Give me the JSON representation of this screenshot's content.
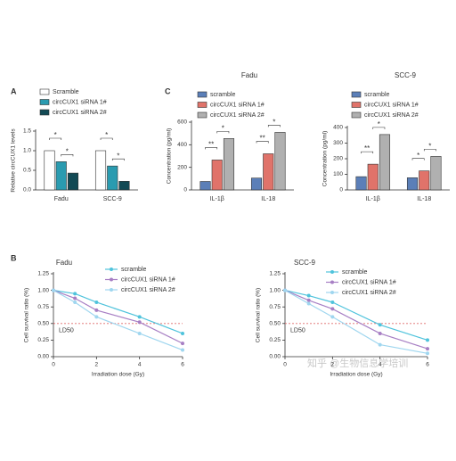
{
  "chart_data": [
    {
      "type": "bar",
      "panel": "A",
      "ylabel": "Relative circCUX1 levels",
      "categories": [
        "Fadu",
        "SCC-9"
      ],
      "series": [
        {
          "name": "Scramble",
          "color": "#ffffff",
          "values": [
            1.0,
            1.0
          ]
        },
        {
          "name": "circCUX1 siRNA 1#",
          "color": "#2a9bb0",
          "values": [
            0.72,
            0.61
          ]
        },
        {
          "name": "circCUX1 siRNA 2#",
          "color": "#124a55",
          "values": [
            0.43,
            0.22
          ]
        }
      ],
      "significance": [
        [
          "*",
          "*"
        ],
        [
          "*",
          "*"
        ]
      ],
      "ylim": [
        0,
        1.5
      ],
      "yticks": [
        {
          "value": 0,
          "label": "0.0"
        },
        {
          "value": 0.5,
          "label": "0.5"
        },
        {
          "value": 1,
          "label": "1.0"
        },
        {
          "value": 1.5,
          "label": "1.5"
        }
      ],
      "legend": "top"
    },
    {
      "type": "bar",
      "panel": "C",
      "title": "Fadu",
      "ylabel": "Concentration (pg/ml)",
      "categories": [
        "IL-1β",
        "IL-18"
      ],
      "series": [
        {
          "name": "scramble",
          "color": "#5b7fb8",
          "values": [
            75,
            105
          ]
        },
        {
          "name": "circCUX1 siRNA 1#",
          "color": "#e0736a",
          "values": [
            265,
            320
          ]
        },
        {
          "name": "circCUX1 siRNA 2#",
          "color": "#b0b0b0",
          "values": [
            455,
            510
          ]
        }
      ],
      "significance": [
        [
          "**",
          "*"
        ],
        [
          "**",
          "*"
        ]
      ],
      "ylim": [
        0,
        600
      ],
      "yticks": [
        0,
        200,
        400,
        600
      ],
      "legend": "top"
    },
    {
      "type": "bar",
      "title": "SCC-9",
      "ylabel": "Concentration (pg/ml)",
      "categories": [
        "IL-1β",
        "IL-18"
      ],
      "series": [
        {
          "name": "scramble",
          "color": "#5b7fb8",
          "values": [
            85,
            78
          ]
        },
        {
          "name": "circCUX1 siRNA 1#",
          "color": "#e0736a",
          "values": [
            165,
            122
          ]
        },
        {
          "name": "circCUX1 siRNA 2#",
          "color": "#b0b0b0",
          "values": [
            355,
            215
          ]
        }
      ],
      "significance": [
        [
          "**",
          "*"
        ],
        [
          "*",
          "*"
        ]
      ],
      "ylim": [
        0,
        400
      ],
      "yticks": [
        0,
        100,
        200,
        300,
        400
      ],
      "legend": "top"
    },
    {
      "type": "line",
      "panel": "B",
      "title": "Fadu",
      "ylabel": "Cell survival ratio (%)",
      "xlabel": "Irradiation dose (Gy)",
      "x": [
        0,
        1,
        2,
        4,
        6
      ],
      "series": [
        {
          "name": "scramble",
          "color": "#4fc3dc",
          "values": [
            1.0,
            0.95,
            0.82,
            0.6,
            0.35
          ]
        },
        {
          "name": "circCUX1 siRNA 1#",
          "color": "#a77fc4",
          "values": [
            1.0,
            0.88,
            0.7,
            0.52,
            0.2
          ]
        },
        {
          "name": "circCUX1 siRNA 2#",
          "color": "#9fd6ef",
          "values": [
            1.0,
            0.82,
            0.6,
            0.35,
            0.1
          ]
        }
      ],
      "reference_line": {
        "value": 0.5,
        "label": "LD50",
        "color": "#e06a6a"
      },
      "xlim": [
        0,
        6
      ],
      "xticks": [
        0,
        2,
        4,
        6
      ],
      "ylim": [
        0,
        1.25
      ],
      "yticks": [
        {
          "value": 0,
          "label": "0.00"
        },
        {
          "value": 0.25,
          "label": "0.25"
        },
        {
          "value": 0.5,
          "label": "0.50"
        },
        {
          "value": 0.75,
          "label": "0.75"
        },
        {
          "value": 1,
          "label": "1.00"
        },
        {
          "value": 1.25,
          "label": "1.25"
        }
      ],
      "legend": "top-right"
    },
    {
      "type": "line",
      "title": "SCC-9",
      "ylabel": "Cell survival ratio (%)",
      "xlabel": "Irradiation dose (Gy)",
      "x": [
        0,
        1,
        2,
        4,
        6
      ],
      "series": [
        {
          "name": "scramble",
          "color": "#4fc3dc",
          "values": [
            1.0,
            0.92,
            0.82,
            0.48,
            0.25
          ]
        },
        {
          "name": "circCUX1 siRNA 1#",
          "color": "#a77fc4",
          "values": [
            1.0,
            0.85,
            0.72,
            0.35,
            0.12
          ]
        },
        {
          "name": "circCUX1 siRNA 2#",
          "color": "#9fd6ef",
          "values": [
            1.0,
            0.8,
            0.6,
            0.18,
            0.05
          ]
        }
      ],
      "reference_line": {
        "value": 0.5,
        "label": "LD50",
        "color": "#e06a6a"
      },
      "xlim": [
        0,
        6
      ],
      "xticks": [
        0,
        2,
        4,
        6
      ],
      "ylim": [
        0,
        1.25
      ],
      "yticks": [
        {
          "value": 0,
          "label": "0.00"
        },
        {
          "value": 0.25,
          "label": "0.25"
        },
        {
          "value": 0.5,
          "label": "0.50"
        },
        {
          "value": 0.75,
          "label": "0.75"
        },
        {
          "value": 1,
          "label": "1.00"
        },
        {
          "value": 1.25,
          "label": "1.25"
        }
      ],
      "legend": "top-right"
    }
  ],
  "watermark": "知乎 @生物信息学培训"
}
